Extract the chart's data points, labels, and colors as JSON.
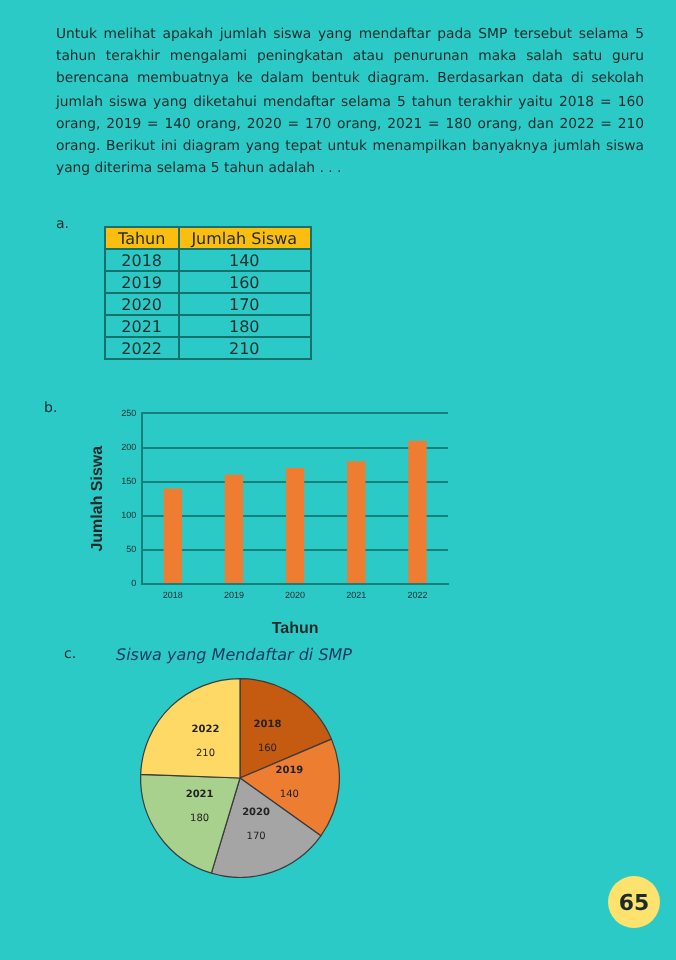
{
  "chart_data": [
    {
      "type": "other",
      "annotations": [
        "Untuk melihat apakah jumlah siswa yang mendaftar pada SMP tersebut selama 5 tahun terakhir mengalami peningkatan atau penurunan maka salah satu guru berencana membuatnya ke dalam bentuk diagram. Berdasarkan data di sekolah jumlah siswa yang diketahui mendaftar selama 5 tahun terakhir yaitu 2018 = 160 orang, 2019 = 140 orang, 2020 = 170 orang, 2021 = 180 orang, dan 2022 = 210 orang. Berikut ini diagram yang tepat untuk menampilkan banyaknya jumlah siswa yang diterima selama 5 tahun adalah . . .",
        "65"
      ]
    },
    {
      "type": "heatmap",
      "annotations": [
        "a."
      ],
      "ylabel": "Tahun",
      "categories": [
        "Jumlah Siswa"
      ],
      "y_categories": [
        "2018",
        "2019",
        "2020",
        "2021",
        "2022"
      ],
      "cells": [
        [
          140
        ],
        [
          160
        ],
        [
          170
        ],
        [
          180
        ],
        [
          210
        ]
      ],
      "data_labels": true
    },
    {
      "type": "bar",
      "annotations": [
        "b."
      ],
      "categories": [
        "2018",
        "2019",
        "2020",
        "2021",
        "2022"
      ],
      "values": [
        140,
        160,
        170,
        180,
        210
      ],
      "color": "#ee7d31",
      "ylim": [
        0,
        250
      ],
      "yticks": [
        0,
        50,
        100,
        150,
        200,
        250
      ],
      "grid": "y",
      "xlabel": "Tahun",
      "ylabel": "Jumlah Siswa"
    },
    {
      "type": "pie",
      "annotations": [
        "c."
      ],
      "title": "Siswa yang Mendaftar di SMP",
      "categories": [
        "2018",
        "2019",
        "2020",
        "2021",
        "2022"
      ],
      "values": [
        160,
        140,
        170,
        180,
        210
      ],
      "colors": [
        "#c55a11",
        "#ed7d31",
        "#a5a5a5",
        "#a9d18e",
        "#ffd966"
      ],
      "data_labels": true
    }
  ]
}
